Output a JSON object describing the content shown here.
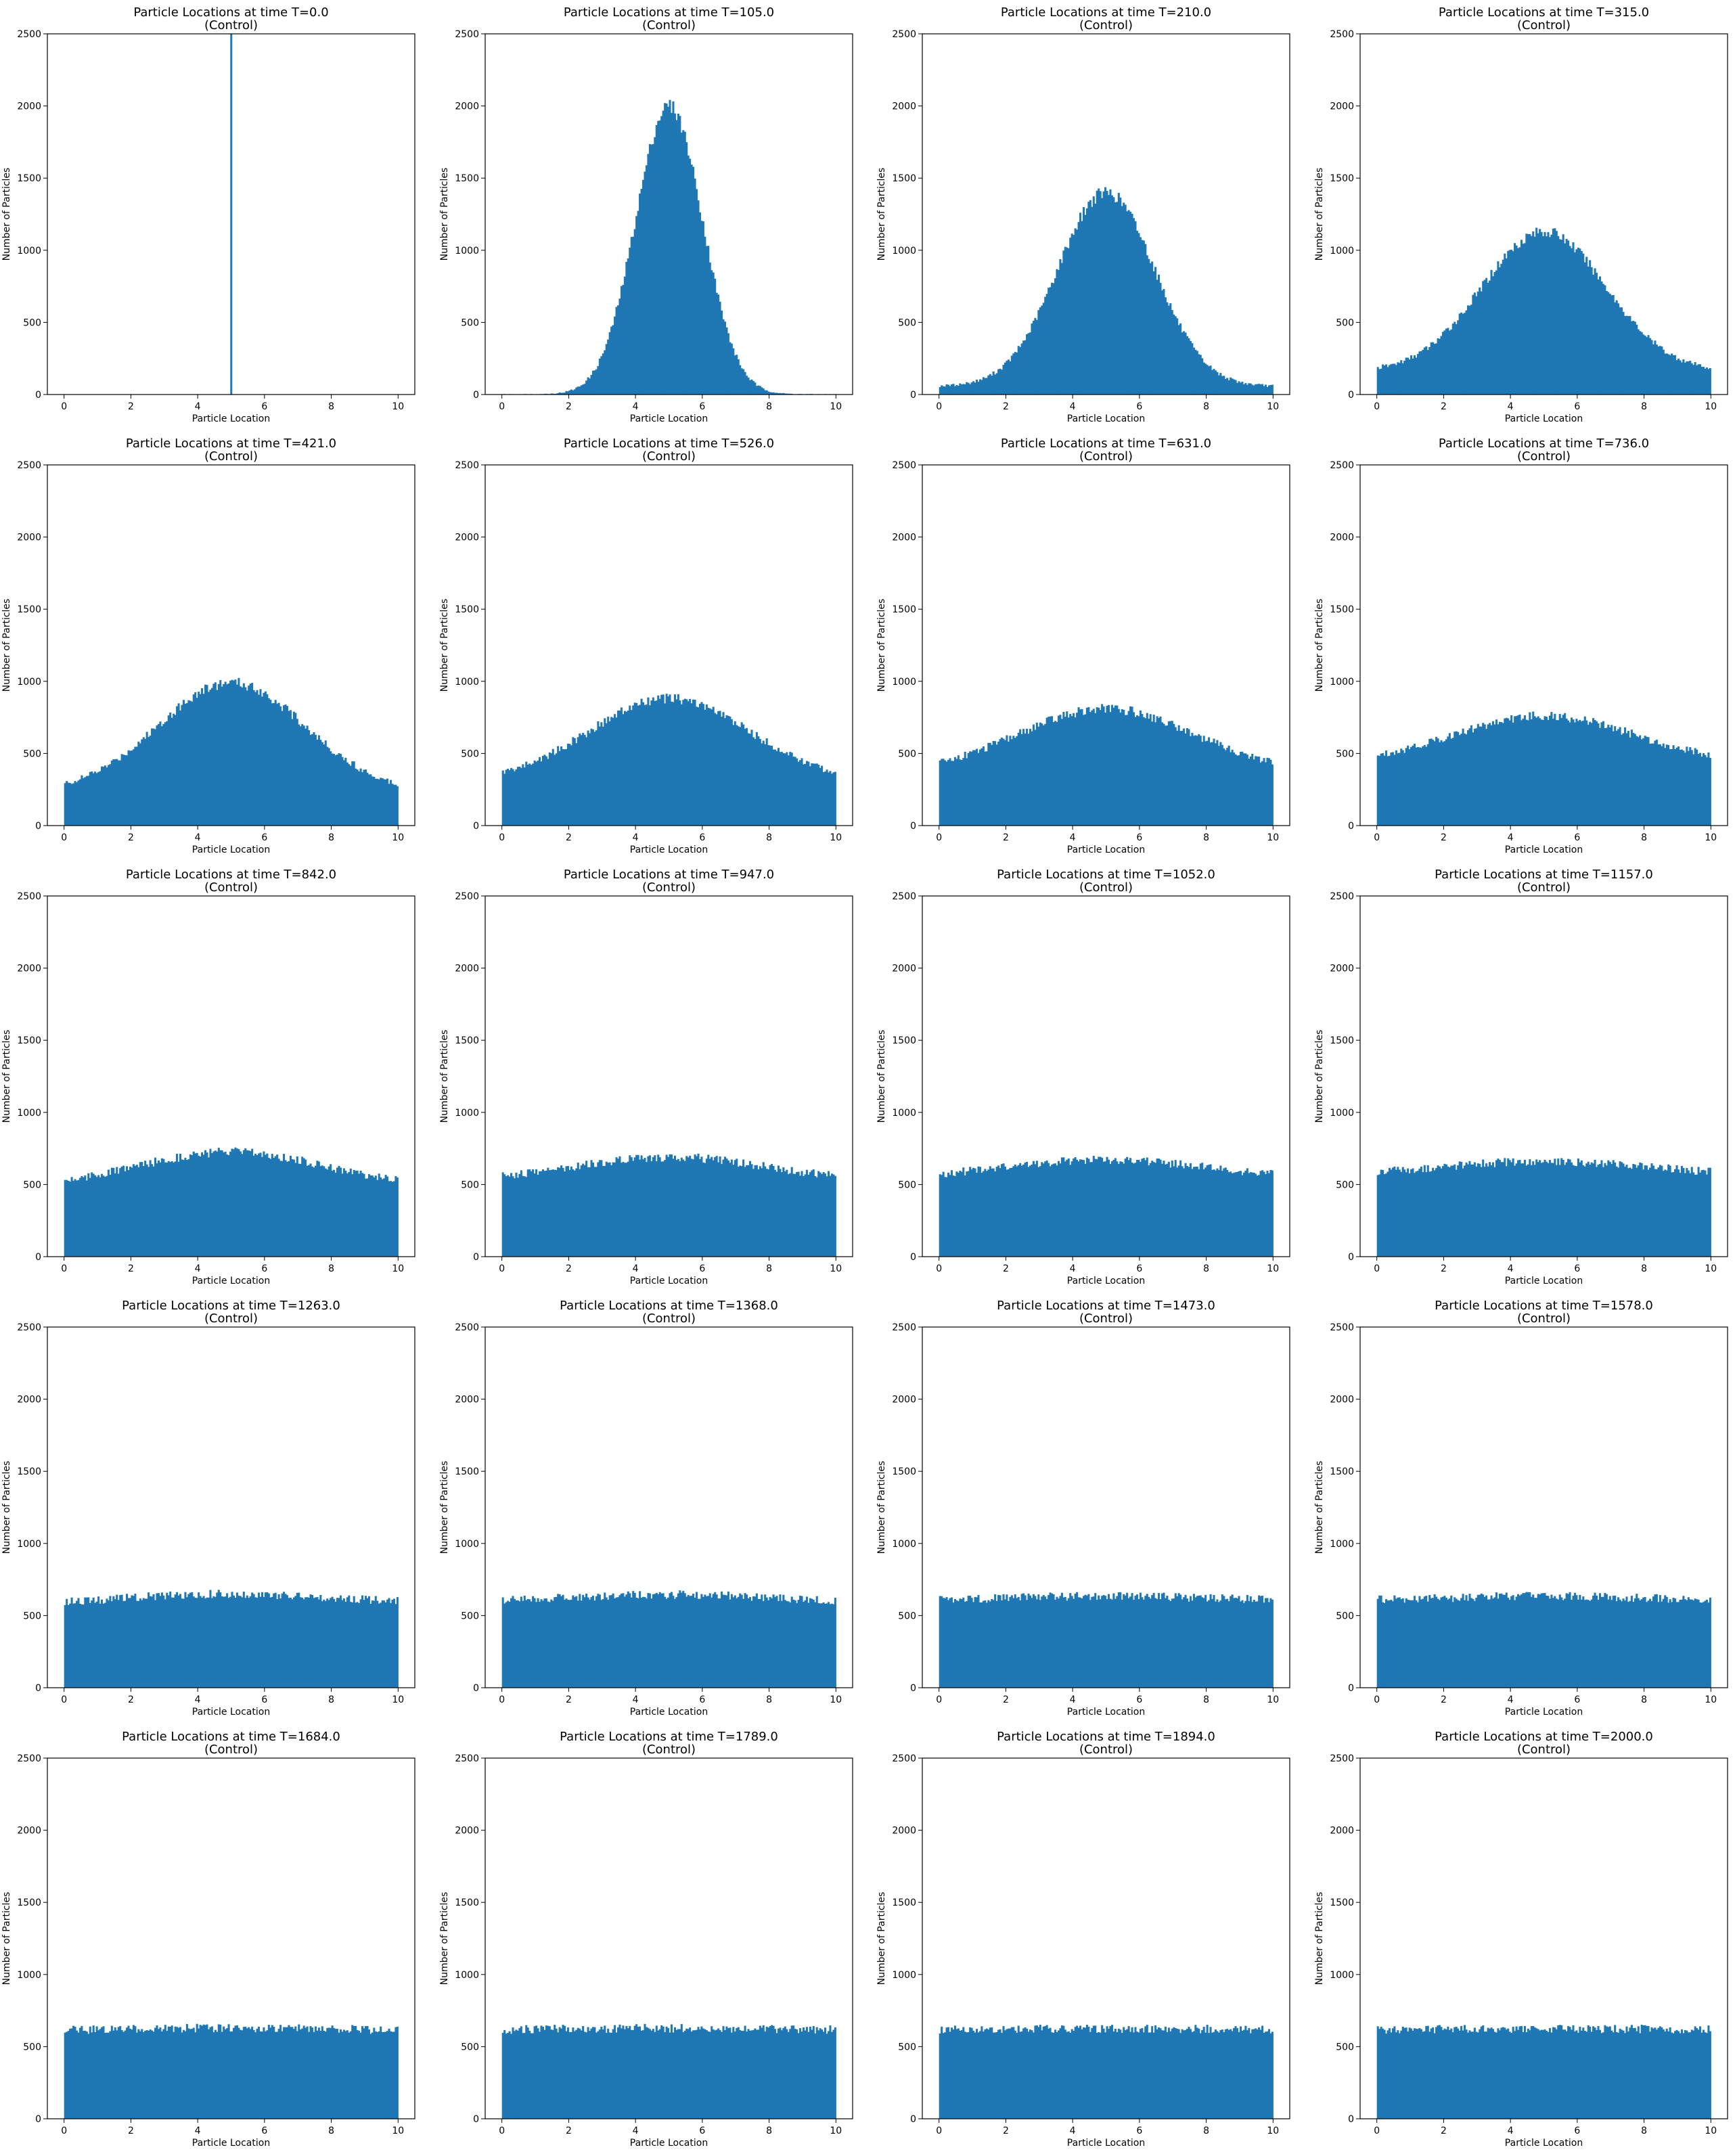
{
  "chart_data": {
    "type": "histogram-grid",
    "rows": 5,
    "cols": 4,
    "bar_color": "#1f77b4",
    "x_range": [
      0,
      10
    ],
    "xlim": [
      -0.5,
      10.5
    ],
    "ylim": [
      0,
      2500
    ],
    "x_ticks": [
      "0",
      "2",
      "4",
      "6",
      "8",
      "10"
    ],
    "y_ticks": [
      "0",
      "500",
      "1000",
      "1500",
      "2000",
      "2500"
    ],
    "xlabel": "Particle Location",
    "ylabel": "Number of Particles",
    "bins": 200,
    "grid": false,
    "legend": false,
    "panels": [
      {
        "title": "Particle Locations at time T=0.0",
        "subtitle": "(Control)",
        "shape": "spike",
        "spike_x": 5.0,
        "spike_height": 2500
      },
      {
        "title": "Particle Locations at time T=105.0",
        "subtitle": "(Control)",
        "shape": "gaussian",
        "peak": 2000,
        "edge": 2,
        "mean": 5.0,
        "sigma": 1.0
      },
      {
        "title": "Particle Locations at time T=210.0",
        "subtitle": "(Control)",
        "shape": "gaussian",
        "peak": 1400,
        "edge": 60,
        "mean": 5.0,
        "sigma": 1.45
      },
      {
        "title": "Particle Locations at time T=315.0",
        "subtitle": "(Control)",
        "shape": "gaussian",
        "peak": 1130,
        "edge": 185,
        "mean": 5.0,
        "sigma": 1.85
      },
      {
        "title": "Particle Locations at time T=421.0",
        "subtitle": "(Control)",
        "shape": "gaussian",
        "peak": 990,
        "edge": 290,
        "mean": 5.0,
        "sigma": 2.2
      },
      {
        "title": "Particle Locations at time T=526.0",
        "subtitle": "(Control)",
        "shape": "gaussian",
        "peak": 880,
        "edge": 370,
        "mean": 5.0,
        "sigma": 2.4
      },
      {
        "title": "Particle Locations at time T=631.0",
        "subtitle": "(Control)",
        "shape": "gaussian",
        "peak": 810,
        "edge": 440,
        "mean": 5.0,
        "sigma": 2.6
      },
      {
        "title": "Particle Locations at time T=736.0",
        "subtitle": "(Control)",
        "shape": "gaussian",
        "peak": 760,
        "edge": 490,
        "mean": 5.0,
        "sigma": 2.7
      },
      {
        "title": "Particle Locations at time T=842.0",
        "subtitle": "(Control)",
        "shape": "gaussian",
        "peak": 725,
        "edge": 530,
        "mean": 5.0,
        "sigma": 2.8
      },
      {
        "title": "Particle Locations at time T=947.0",
        "subtitle": "(Control)",
        "shape": "gaussian",
        "peak": 690,
        "edge": 560,
        "mean": 5.0,
        "sigma": 2.9
      },
      {
        "title": "Particle Locations at time T=1052.0",
        "subtitle": "(Control)",
        "shape": "gaussian",
        "peak": 670,
        "edge": 575,
        "mean": 5.0,
        "sigma": 3.0
      },
      {
        "title": "Particle Locations at time T=1157.0",
        "subtitle": "(Control)",
        "shape": "gaussian",
        "peak": 660,
        "edge": 590,
        "mean": 5.0,
        "sigma": 3.0
      },
      {
        "title": "Particle Locations at time T=1263.0",
        "subtitle": "(Control)",
        "shape": "gaussian",
        "peak": 650,
        "edge": 600,
        "mean": 5.0,
        "sigma": 3.0
      },
      {
        "title": "Particle Locations at time T=1368.0",
        "subtitle": "(Control)",
        "shape": "gaussian",
        "peak": 645,
        "edge": 605,
        "mean": 5.0,
        "sigma": 3.0
      },
      {
        "title": "Particle Locations at time T=1473.0",
        "subtitle": "(Control)",
        "shape": "gaussian",
        "peak": 635,
        "edge": 610,
        "mean": 5.0,
        "sigma": 3.0
      },
      {
        "title": "Particle Locations at time T=1578.0",
        "subtitle": "(Control)",
        "shape": "gaussian",
        "peak": 635,
        "edge": 610,
        "mean": 5.0,
        "sigma": 3.0
      },
      {
        "title": "Particle Locations at time T=1684.0",
        "subtitle": "(Control)",
        "shape": "gaussian",
        "peak": 630,
        "edge": 615,
        "mean": 5.0,
        "sigma": 3.0
      },
      {
        "title": "Particle Locations at time T=1789.0",
        "subtitle": "(Control)",
        "shape": "gaussian",
        "peak": 628,
        "edge": 618,
        "mean": 5.0,
        "sigma": 3.0
      },
      {
        "title": "Particle Locations at time T=1894.0",
        "subtitle": "(Control)",
        "shape": "gaussian",
        "peak": 625,
        "edge": 620,
        "mean": 5.0,
        "sigma": 3.0
      },
      {
        "title": "Particle Locations at time T=2000.0",
        "subtitle": "(Control)",
        "shape": "gaussian",
        "peak": 625,
        "edge": 620,
        "mean": 5.0,
        "sigma": 3.0
      }
    ]
  }
}
